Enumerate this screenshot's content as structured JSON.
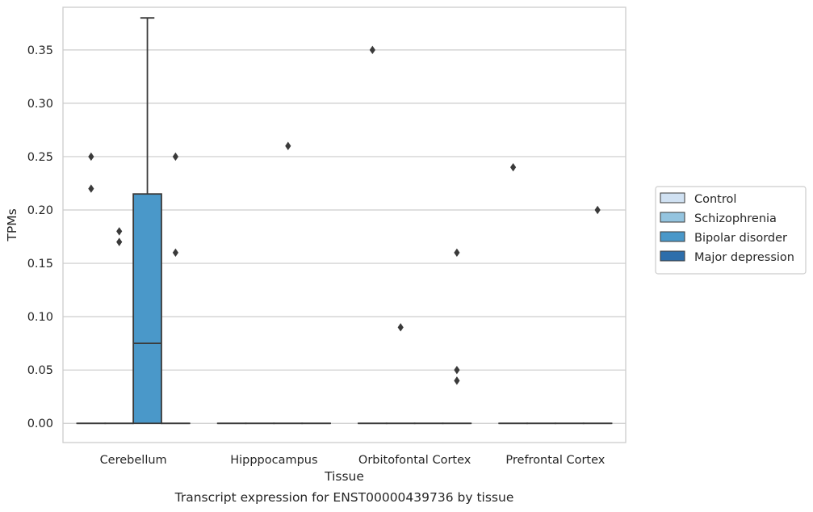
{
  "chart_data": {
    "type": "box",
    "xlabel": "Tissue",
    "ylabel": "TPMs",
    "caption": "Transcript expression for ENST00000439736 by tissue",
    "categories": [
      "Cerebellum",
      "Hipppocampus",
      "Orbitofontal Cortex",
      "Prefrontal Cortex"
    ],
    "ylim": [
      -0.018,
      0.39
    ],
    "yticks": [
      0.0,
      0.05,
      0.1,
      0.15,
      0.2,
      0.25,
      0.3,
      0.35
    ],
    "ytick_labels": [
      "0.00",
      "0.05",
      "0.10",
      "0.15",
      "0.20",
      "0.25",
      "0.30",
      "0.35"
    ],
    "grid": "horizontal",
    "legend_position": "right",
    "series": [
      {
        "name": "Control",
        "color": "#d0e1f2"
      },
      {
        "name": "Schizophrenia",
        "color": "#94c4df"
      },
      {
        "name": "Bipolar disorder",
        "color": "#4a98c9"
      },
      {
        "name": "Major depression",
        "color": "#2d6eab"
      }
    ],
    "boxes": [
      {
        "category": "Cerebellum",
        "series": "Control",
        "q1": 0,
        "median": 0,
        "q3": 0,
        "whisker_low": 0,
        "whisker_high": 0,
        "outliers": [
          0.25,
          0.22
        ]
      },
      {
        "category": "Cerebellum",
        "series": "Schizophrenia",
        "q1": 0,
        "median": 0,
        "q3": 0,
        "whisker_low": 0,
        "whisker_high": 0,
        "outliers": [
          0.18,
          0.17
        ]
      },
      {
        "category": "Cerebellum",
        "series": "Bipolar disorder",
        "q1": 0,
        "median": 0.075,
        "q3": 0.215,
        "whisker_low": 0,
        "whisker_high": 0.38,
        "outliers": []
      },
      {
        "category": "Cerebellum",
        "series": "Major depression",
        "q1": 0,
        "median": 0,
        "q3": 0,
        "whisker_low": 0,
        "whisker_high": 0,
        "outliers": [
          0.25,
          0.16
        ]
      },
      {
        "category": "Hipppocampus",
        "series": "Control",
        "q1": 0,
        "median": 0,
        "q3": 0,
        "whisker_low": 0,
        "whisker_high": 0,
        "outliers": []
      },
      {
        "category": "Hipppocampus",
        "series": "Schizophrenia",
        "q1": 0,
        "median": 0,
        "q3": 0,
        "whisker_low": 0,
        "whisker_high": 0,
        "outliers": []
      },
      {
        "category": "Hipppocampus",
        "series": "Bipolar disorder",
        "q1": 0,
        "median": 0,
        "q3": 0,
        "whisker_low": 0,
        "whisker_high": 0,
        "outliers": [
          0.26
        ]
      },
      {
        "category": "Hipppocampus",
        "series": "Major depression",
        "q1": 0,
        "median": 0,
        "q3": 0,
        "whisker_low": 0,
        "whisker_high": 0,
        "outliers": []
      },
      {
        "category": "Orbitofontal Cortex",
        "series": "Control",
        "q1": 0,
        "median": 0,
        "q3": 0,
        "whisker_low": 0,
        "whisker_high": 0,
        "outliers": [
          0.35
        ]
      },
      {
        "category": "Orbitofontal Cortex",
        "series": "Schizophrenia",
        "q1": 0,
        "median": 0,
        "q3": 0,
        "whisker_low": 0,
        "whisker_high": 0,
        "outliers": [
          0.09
        ]
      },
      {
        "category": "Orbitofontal Cortex",
        "series": "Bipolar disorder",
        "q1": 0,
        "median": 0,
        "q3": 0,
        "whisker_low": 0,
        "whisker_high": 0,
        "outliers": []
      },
      {
        "category": "Orbitofontal Cortex",
        "series": "Major depression",
        "q1": 0,
        "median": 0,
        "q3": 0,
        "whisker_low": 0,
        "whisker_high": 0,
        "outliers": [
          0.16,
          0.05,
          0.04
        ]
      },
      {
        "category": "Prefrontal Cortex",
        "series": "Control",
        "q1": 0,
        "median": 0,
        "q3": 0,
        "whisker_low": 0,
        "whisker_high": 0,
        "outliers": [
          0.24
        ]
      },
      {
        "category": "Prefrontal Cortex",
        "series": "Schizophrenia",
        "q1": 0,
        "median": 0,
        "q3": 0,
        "whisker_low": 0,
        "whisker_high": 0,
        "outliers": []
      },
      {
        "category": "Prefrontal Cortex",
        "series": "Bipolar disorder",
        "q1": 0,
        "median": 0,
        "q3": 0,
        "whisker_low": 0,
        "whisker_high": 0,
        "outliers": []
      },
      {
        "category": "Prefrontal Cortex",
        "series": "Major depression",
        "q1": 0,
        "median": 0,
        "q3": 0,
        "whisker_low": 0,
        "whisker_high": 0,
        "outliers": [
          0.2
        ]
      }
    ],
    "colors": {
      "grid": "#cccccc",
      "frame": "#cccccc",
      "line": "#3a3a3a",
      "text": "#262626"
    }
  }
}
